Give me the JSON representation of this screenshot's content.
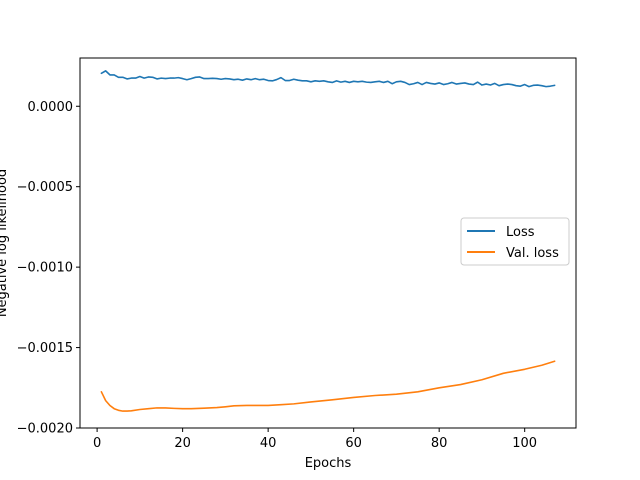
{
  "chart_data": {
    "type": "line",
    "title": "",
    "xlabel": "Epochs",
    "ylabel": "Negative log likelihood",
    "xlim": [
      -4,
      112
    ],
    "ylim": [
      -0.002,
      0.0003
    ],
    "x_ticks": [
      0,
      20,
      40,
      60,
      80,
      100
    ],
    "x_tick_labels": [
      "0",
      "20",
      "40",
      "60",
      "80",
      "100"
    ],
    "y_ticks": [
      -0.002,
      -0.0015,
      -0.001,
      -0.0005,
      0.0
    ],
    "y_tick_labels": [
      "−0.0020",
      "−0.0015",
      "−0.0010",
      "−0.0005",
      "0.0000"
    ],
    "grid": false,
    "legend_position": "center-right",
    "series": [
      {
        "name": "Loss",
        "color": "#1f77b4",
        "x": [
          1,
          2,
          3,
          4,
          5,
          6,
          7,
          8,
          9,
          10,
          11,
          12,
          13,
          14,
          15,
          16,
          17,
          18,
          19,
          20,
          21,
          22,
          23,
          24,
          25,
          26,
          27,
          28,
          29,
          30,
          31,
          32,
          33,
          34,
          35,
          36,
          37,
          38,
          39,
          40,
          41,
          42,
          43,
          44,
          45,
          46,
          47,
          48,
          49,
          50,
          51,
          52,
          53,
          54,
          55,
          56,
          57,
          58,
          59,
          60,
          61,
          62,
          63,
          64,
          65,
          66,
          67,
          68,
          69,
          70,
          71,
          72,
          73,
          74,
          75,
          76,
          77,
          78,
          79,
          80,
          81,
          82,
          83,
          84,
          85,
          86,
          87,
          88,
          89,
          90,
          91,
          92,
          93,
          94,
          95,
          96,
          97,
          98,
          99,
          100,
          101,
          102,
          103,
          104,
          105,
          106,
          107
        ],
        "y": [
          0.000205,
          0.00022,
          0.000195,
          0.000195,
          0.00018,
          0.00018,
          0.00017,
          0.000175,
          0.000175,
          0.000185,
          0.000175,
          0.000182,
          0.00018,
          0.00017,
          0.000175,
          0.000172,
          0.000175,
          0.000175,
          0.000178,
          0.000172,
          0.000165,
          0.000172,
          0.00018,
          0.000182,
          0.000172,
          0.000172,
          0.000174,
          0.000172,
          0.000168,
          0.000172,
          0.00017,
          0.000165,
          0.000168,
          0.000162,
          0.00017,
          0.000165,
          0.000172,
          0.000165,
          0.000168,
          0.00016,
          0.000158,
          0.000166,
          0.000178,
          0.00016,
          0.00016,
          0.000168,
          0.000162,
          0.000158,
          0.000158,
          0.000152,
          0.000158,
          0.000155,
          0.000158,
          0.000152,
          0.000148,
          0.000158,
          0.00015,
          0.000155,
          0.000148,
          0.000155,
          0.000152,
          0.000155,
          0.00015,
          0.000148,
          0.000152,
          0.000155,
          0.000148,
          0.000155,
          0.00014,
          0.000152,
          0.000155,
          0.000148,
          0.000135,
          0.00014,
          0.000148,
          0.000135,
          0.000148,
          0.000142,
          0.000138,
          0.000145,
          0.000135,
          0.00014,
          0.000148,
          0.000138,
          0.000142,
          0.000145,
          0.000138,
          0.000135,
          0.00015,
          0.000132,
          0.000138,
          0.000132,
          0.000142,
          0.000128,
          0.000135,
          0.000138,
          0.000135,
          0.000128,
          0.000125,
          0.000135,
          0.000122,
          0.00013,
          0.000132,
          0.000128,
          0.000122,
          0.000125,
          0.00013
        ]
      },
      {
        "name": "Val. loss",
        "color": "#ff7f0e",
        "x": [
          1,
          2,
          3,
          4,
          5,
          6,
          7,
          8,
          10,
          12,
          14,
          16,
          18,
          20,
          22,
          25,
          28,
          30,
          32,
          35,
          38,
          40,
          43,
          46,
          50,
          55,
          60,
          65,
          70,
          75,
          80,
          85,
          90,
          95,
          100,
          104,
          107
        ],
        "y": [
          -0.001775,
          -0.00183,
          -0.00186,
          -0.00188,
          -0.00189,
          -0.001895,
          -0.001895,
          -0.001893,
          -0.001885,
          -0.00188,
          -0.001875,
          -0.001875,
          -0.001878,
          -0.00188,
          -0.00188,
          -0.001877,
          -0.001873,
          -0.001868,
          -0.001862,
          -0.00186,
          -0.00186,
          -0.00186,
          -0.001855,
          -0.00185,
          -0.001838,
          -0.001825,
          -0.00181,
          -0.001798,
          -0.00179,
          -0.001775,
          -0.00175,
          -0.00173,
          -0.0017,
          -0.00166,
          -0.001635,
          -0.00161,
          -0.001585
        ]
      }
    ]
  }
}
